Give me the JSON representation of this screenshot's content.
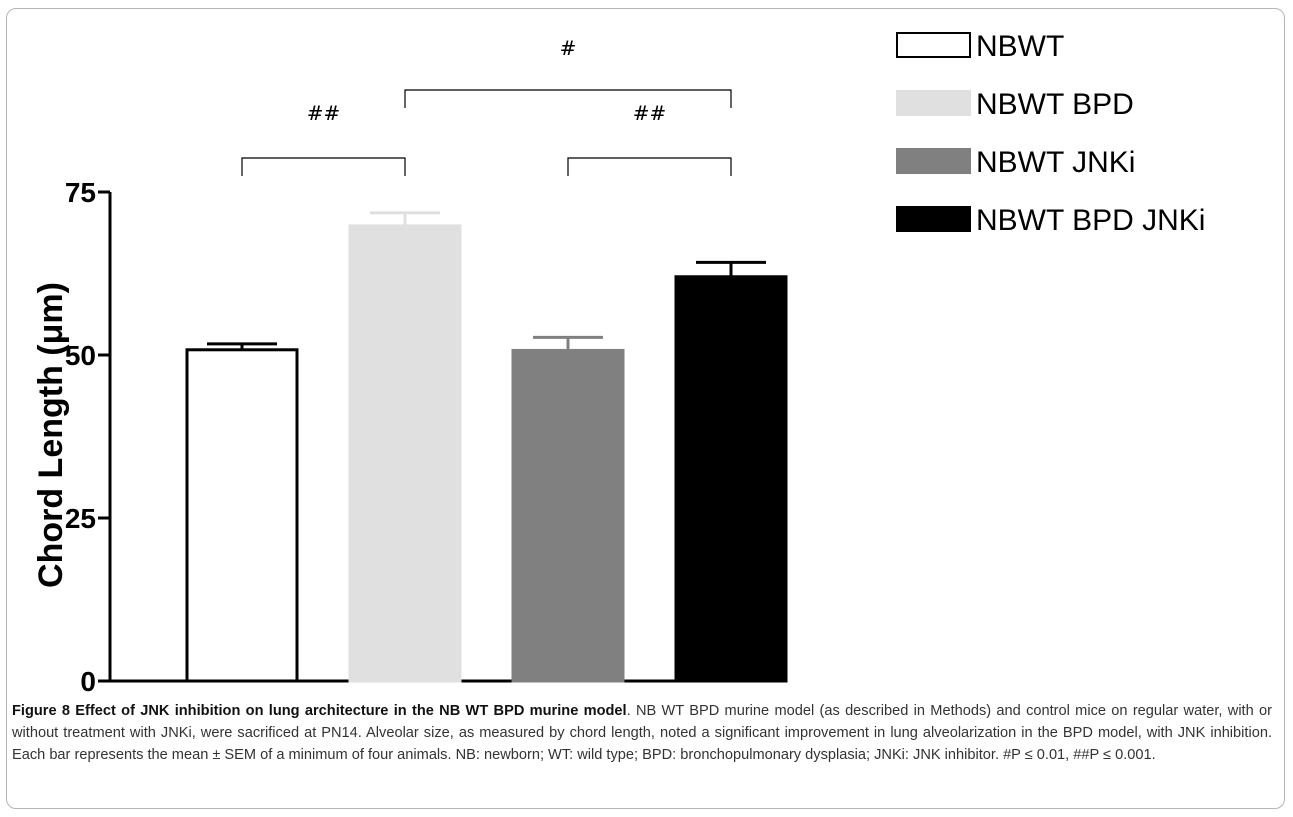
{
  "chart_data": {
    "type": "bar",
    "categories": [
      "NBWT",
      "NBWT BPD",
      "NBWT JNKi",
      "NBWT BPD JNKi"
    ],
    "values": [
      50.8,
      69.8,
      50.7,
      62.0
    ],
    "errors": [
      0.9,
      2.0,
      2.0,
      2.2
    ],
    "colors": [
      "#ffffff",
      "#e0e0e0",
      "#808080",
      "#000000"
    ],
    "ylabel": "Chord Length (μm)",
    "ylim": [
      0,
      75
    ],
    "yticks": [
      "0",
      "25",
      "50",
      "75"
    ],
    "ytick_values": [
      0,
      25,
      50,
      75
    ],
    "legend": {
      "position": "top-right",
      "entries": [
        "NBWT",
        "NBWT BPD",
        "NBWT JNKi",
        "NBWT BPD JNKi"
      ]
    },
    "significance": [
      {
        "from": 0,
        "to": 1,
        "label": "##"
      },
      {
        "from": 2,
        "to": 3,
        "label": "##"
      },
      {
        "from": 1,
        "to": 3,
        "label": "#"
      }
    ]
  },
  "caption": {
    "title": "Figure 8 Effect of JNK inhibition on lung architecture in the NB WT BPD murine model",
    "body": ". NB WT BPD murine model (as described in Methods) and control mice on regular water, with or without treatment with JNKi, were sacrificed at PN14. Alveolar size, as measured by chord length, noted a significant improvement in lung alveolarization in the BPD model, with JNK inhibition. Each bar represents the mean ± SEM of a minimum of four animals. NB: newborn; WT: wild type; BPD: bronchopulmonary dysplasia; JNKi: JNK inhibitor. #P ≤ 0.01, ##P ≤ 0.001."
  }
}
